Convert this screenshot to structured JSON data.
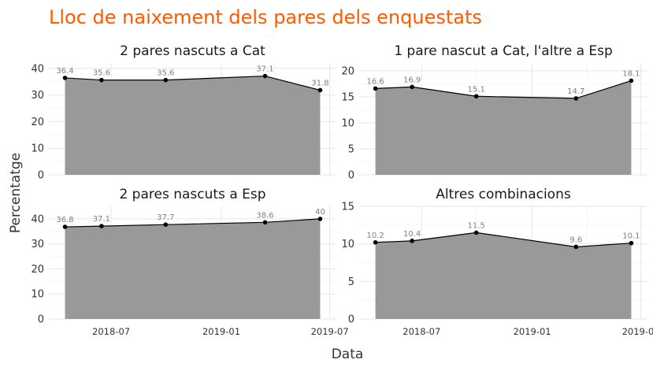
{
  "chart_data": {
    "type": "area",
    "title": "Lloc de naixement dels pares dels enquestats",
    "xlabel": "Data",
    "ylabel": "Percentatge",
    "x": [
      "2018-04-15",
      "2018-06-15",
      "2018-09-30",
      "2019-03-15",
      "2019-06-15"
    ],
    "x_ticks": [
      {
        "date": "2018-07-01",
        "label": "2018-07"
      },
      {
        "date": "2019-01-01",
        "label": "2019-01"
      },
      {
        "date": "2019-07-01",
        "label": "2019-07"
      }
    ],
    "panels": [
      {
        "title": "2 pares nascuts a Cat",
        "values": [
          36.4,
          35.6,
          35.6,
          37.1,
          31.8
        ],
        "ylim": [
          0,
          42
        ],
        "yticks": [
          0,
          10,
          20,
          30,
          40
        ]
      },
      {
        "title": "1 pare nascut a Cat, l'altre a Esp",
        "values": [
          16.6,
          16.9,
          15.1,
          14.7,
          18.1
        ],
        "ylim": [
          0,
          21.5
        ],
        "yticks": [
          0,
          5,
          10,
          15,
          20
        ]
      },
      {
        "title": "2 pares nascuts a Esp",
        "values": [
          36.8,
          37.1,
          37.7,
          38.6,
          40
        ],
        "ylim": [
          0,
          45
        ],
        "yticks": [
          0,
          10,
          20,
          30,
          40
        ]
      },
      {
        "title": "Altres combinacions",
        "values": [
          10.2,
          10.4,
          11.5,
          9.6,
          10.1
        ],
        "ylim": [
          0,
          15
        ],
        "yticks": [
          0,
          5,
          10,
          15
        ]
      }
    ],
    "colors": {
      "title": "#ff5a00",
      "area": "#999999",
      "line": "#000000"
    },
    "grid": true,
    "legend": "none"
  }
}
